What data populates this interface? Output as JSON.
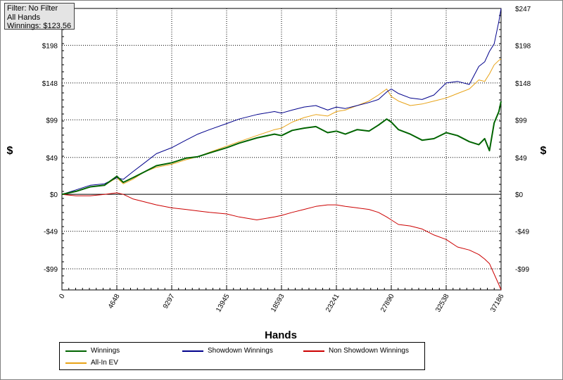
{
  "info": {
    "filter": "Filter: No Filter",
    "hands": "All Hands",
    "winnings": "Winnings: $123.56"
  },
  "chart_data": {
    "type": "line",
    "xlabel": "Hands",
    "ylabel_left": "$",
    "ylabel_right": "$",
    "xlim": [
      0,
      37186
    ],
    "ylim": [
      -127,
      247
    ],
    "x_ticks": [
      0,
      4648,
      9297,
      13945,
      18593,
      23241,
      27890,
      32538,
      37186
    ],
    "y_ticks": [
      {
        "value": 247,
        "label": "$247"
      },
      {
        "value": 198,
        "label": "$198"
      },
      {
        "value": 148,
        "label": "$148"
      },
      {
        "value": 99,
        "label": "$99"
      },
      {
        "value": 49,
        "label": "$49"
      },
      {
        "value": 0,
        "label": "$0"
      },
      {
        "value": -49,
        "label": "-$49"
      },
      {
        "value": -99,
        "label": "-$99"
      }
    ],
    "grid": true,
    "legend_placement": "bottom",
    "series": [
      {
        "name": "Winnings",
        "color": "#006400",
        "x": [
          0,
          1200,
          2400,
          3600,
          4648,
          5200,
          6000,
          7000,
          8000,
          9297,
          10500,
          11500,
          12500,
          13945,
          15000,
          16500,
          18000,
          18593,
          19500,
          20500,
          21500,
          22500,
          23241,
          24000,
          25000,
          26000,
          26800,
          27500,
          27890,
          28500,
          29500,
          30500,
          31500,
          32538,
          33500,
          34500,
          35300,
          35800,
          36200,
          36600,
          37000,
          37186
        ],
        "values": [
          0,
          4,
          10,
          12,
          24,
          16,
          22,
          30,
          38,
          42,
          48,
          50,
          55,
          62,
          68,
          75,
          80,
          78,
          85,
          88,
          90,
          82,
          84,
          80,
          86,
          84,
          92,
          100,
          96,
          86,
          80,
          72,
          74,
          82,
          78,
          70,
          66,
          74,
          58,
          95,
          110,
          123.56
        ]
      },
      {
        "name": "All-In EV",
        "color": "#e8a317",
        "x": [
          0,
          1200,
          2400,
          3600,
          4648,
          5200,
          6000,
          7000,
          8000,
          9297,
          10500,
          11500,
          12500,
          13945,
          15000,
          16500,
          18000,
          18593,
          19500,
          20500,
          21500,
          22500,
          23241,
          24000,
          25000,
          26000,
          26800,
          27500,
          27890,
          28500,
          29500,
          30500,
          31500,
          32538,
          33500,
          34500,
          35300,
          35800,
          36200,
          36600,
          37000,
          37186
        ],
        "values": [
          0,
          4,
          10,
          12,
          22,
          14,
          20,
          30,
          36,
          40,
          46,
          50,
          56,
          64,
          70,
          78,
          86,
          88,
          96,
          102,
          106,
          104,
          110,
          112,
          118,
          124,
          132,
          140,
          130,
          124,
          118,
          120,
          124,
          128,
          134,
          140,
          152,
          150,
          160,
          172,
          178,
          180
        ]
      },
      {
        "name": "Showdown Winnings",
        "color": "#00008b",
        "x": [
          0,
          1200,
          2400,
          3600,
          4648,
          5200,
          6000,
          7000,
          8000,
          9297,
          10500,
          11500,
          12500,
          13945,
          15000,
          16500,
          18000,
          18593,
          19500,
          20500,
          21500,
          22500,
          23241,
          24000,
          25000,
          26000,
          26800,
          27500,
          27890,
          28500,
          29500,
          30500,
          31500,
          32538,
          33500,
          34500,
          35300,
          35800,
          36200,
          36600,
          37000,
          37186
        ],
        "values": [
          0,
          6,
          12,
          14,
          22,
          20,
          30,
          42,
          54,
          62,
          72,
          80,
          86,
          94,
          100,
          106,
          110,
          108,
          112,
          116,
          118,
          112,
          116,
          114,
          118,
          122,
          126,
          136,
          140,
          134,
          128,
          126,
          132,
          148,
          150,
          146,
          170,
          176,
          190,
          200,
          230,
          247
        ]
      },
      {
        "name": "Non Showdown Winnings",
        "color": "#cc0000",
        "x": [
          0,
          1200,
          2400,
          3600,
          4648,
          5200,
          6000,
          7000,
          8000,
          9297,
          10500,
          11500,
          12500,
          13945,
          15000,
          16500,
          18000,
          18593,
          19500,
          20500,
          21500,
          22500,
          23241,
          24000,
          25000,
          26000,
          26800,
          27500,
          27890,
          28500,
          29500,
          30500,
          31500,
          32538,
          33500,
          34500,
          35300,
          35800,
          36200,
          36600,
          37000,
          37186
        ],
        "values": [
          0,
          -2,
          -2,
          0,
          2,
          0,
          -6,
          -10,
          -14,
          -18,
          -20,
          -22,
          -24,
          -26,
          -30,
          -34,
          -30,
          -28,
          -24,
          -20,
          -16,
          -14,
          -14,
          -16,
          -18,
          -20,
          -24,
          -30,
          -34,
          -40,
          -42,
          -46,
          -54,
          -60,
          -70,
          -74,
          -80,
          -86,
          -92,
          -106,
          -120,
          -127
        ]
      }
    ]
  },
  "legend": [
    {
      "label": "Winnings",
      "color": "#006400"
    },
    {
      "label": "Showdown Winnings",
      "color": "#00008b"
    },
    {
      "label": "Non Showdown Winnings",
      "color": "#cc0000"
    },
    {
      "label": "All-In EV",
      "color": "#e8a317"
    }
  ]
}
